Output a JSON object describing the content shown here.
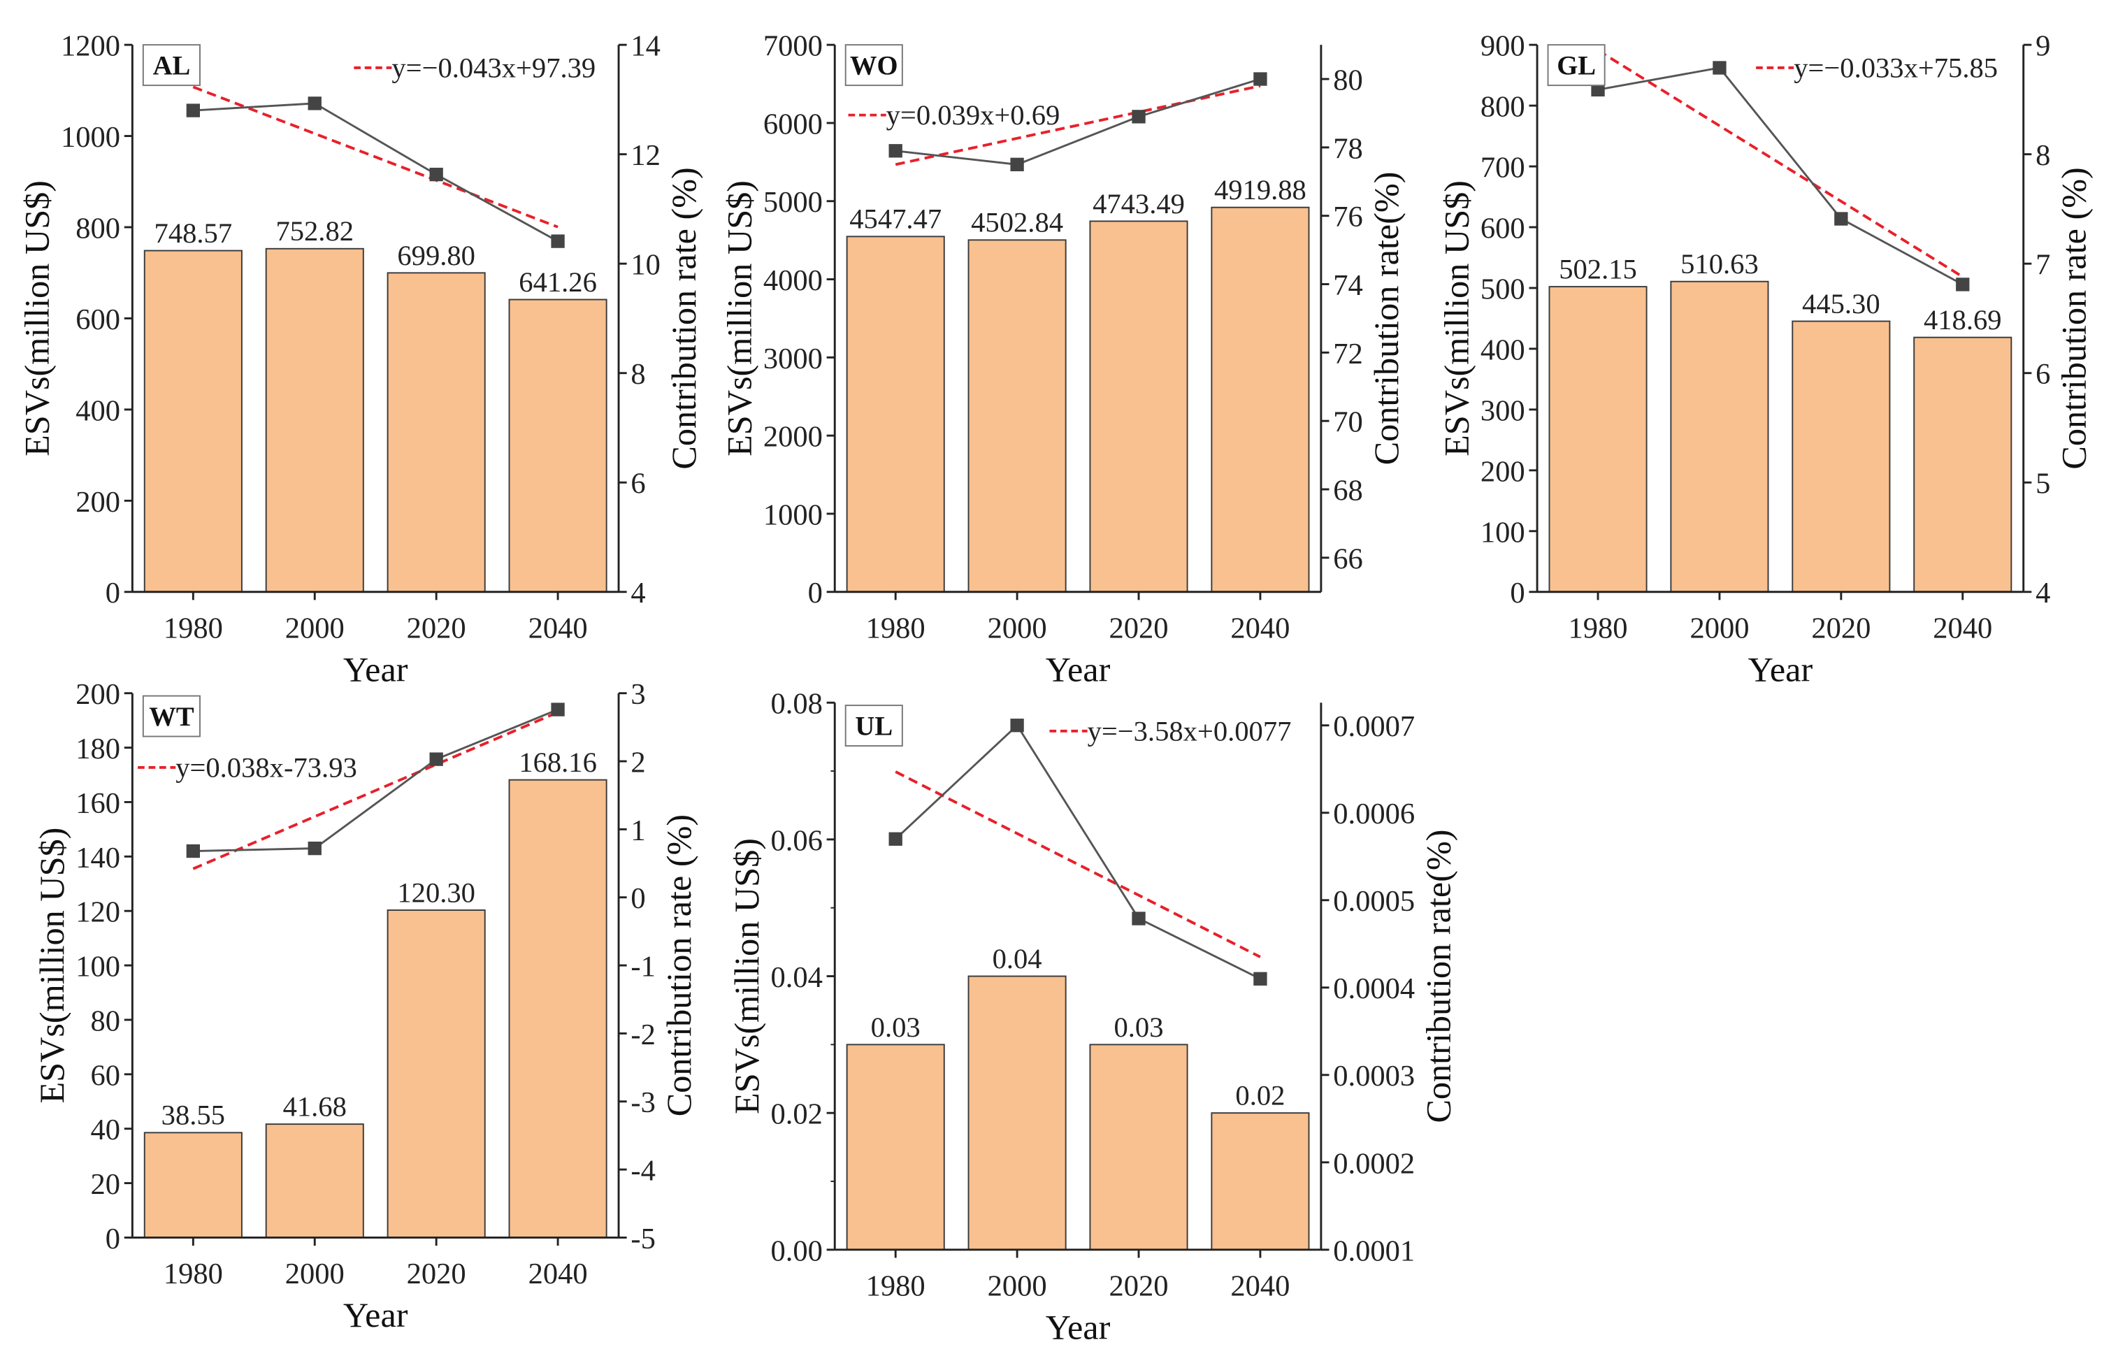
{
  "colors": {
    "bar_fill": "#F9C18F",
    "bar_stroke": "#3a3a3a",
    "line": "#555555",
    "marker": "#444444",
    "trend": "#E8202A",
    "axis": "#222222"
  },
  "chart_data": [
    {
      "type": "bar",
      "panel_label": "AL",
      "categories": [
        "1980",
        "2000",
        "2020",
        "2040"
      ],
      "values": [
        748.57,
        752.82,
        699.8,
        641.26
      ],
      "value_labels": [
        "748.57",
        "752.82",
        "699.80",
        "641.26"
      ],
      "ylabel": "ESVs(million US$)",
      "ylim": [
        0,
        1200
      ],
      "yticks": [
        "0",
        "200",
        "400",
        "600",
        "800",
        "1000",
        "1200"
      ],
      "y2label": "Contribution rate (%)",
      "y2lim": [
        4,
        14
      ],
      "y2ticks": [
        "4",
        "6",
        "8",
        "10",
        "12",
        "14"
      ],
      "xlabel": "Year",
      "line_series": {
        "name": "Contribution rate",
        "values": [
          12.8,
          12.93,
          11.63,
          10.41
        ]
      },
      "trend": {
        "label": "y=−0.043x+97.39",
        "start": 13.23,
        "end": 10.67
      }
    },
    {
      "type": "bar",
      "panel_label": "WO",
      "categories": [
        "1980",
        "2000",
        "2020",
        "2040"
      ],
      "values": [
        4547.47,
        4502.84,
        4743.49,
        4919.88
      ],
      "value_labels": [
        "4547.47",
        "4502.84",
        "4743.49",
        "4919.88"
      ],
      "ylabel": "ESVs(million US$)",
      "ylim": [
        0,
        7000
      ],
      "yticks": [
        "0",
        "1000",
        "2000",
        "3000",
        "4000",
        "5000",
        "6000",
        "7000"
      ],
      "y2label": "Contribution rate(%)",
      "y2lim": [
        65,
        81
      ],
      "y2ticks": [
        "66",
        "68",
        "70",
        "72",
        "74",
        "76",
        "78",
        "80"
      ],
      "xlabel": "Year",
      "line_series": {
        "name": "Contribution rate",
        "values": [
          77.9,
          77.5,
          78.9,
          80.0
        ]
      },
      "trend": {
        "label": "y=0.039x+0.69",
        "start": 77.5,
        "end": 79.8
      }
    },
    {
      "type": "bar",
      "panel_label": "GL",
      "categories": [
        "1980",
        "2000",
        "2020",
        "2040"
      ],
      "values": [
        502.15,
        510.63,
        445.3,
        418.69
      ],
      "value_labels": [
        "502.15",
        "510.63",
        "445.30",
        "418.69"
      ],
      "ylabel": "ESVs(million US$)",
      "ylim": [
        0,
        900
      ],
      "yticks": [
        "0",
        "100",
        "200",
        "300",
        "400",
        "500",
        "600",
        "700",
        "800",
        "900"
      ],
      "y2label": "Contribution rate (%)",
      "y2lim": [
        4,
        9
      ],
      "y2ticks": [
        "4",
        "5",
        "6",
        "7",
        "8",
        "9"
      ],
      "xlabel": "Year",
      "line_series": {
        "name": "Contribution rate",
        "values": [
          8.59,
          8.79,
          7.41,
          6.81
        ]
      },
      "trend": {
        "label": "y=−0.033x+75.85",
        "start": 8.95,
        "end": 6.88
      }
    },
    {
      "type": "bar",
      "panel_label": "WT",
      "categories": [
        "1980",
        "2000",
        "2020",
        "2040"
      ],
      "values": [
        38.55,
        41.68,
        120.3,
        168.16
      ],
      "value_labels": [
        "38.55",
        "41.68",
        "120.30",
        "168.16"
      ],
      "ylabel": "ESVs(million US$)",
      "ylim": [
        0,
        200
      ],
      "yticks": [
        "0",
        "20",
        "40",
        "60",
        "80",
        "100",
        "120",
        "140",
        "160",
        "180",
        "200"
      ],
      "y2label": "Contribution rate (%)",
      "y2lim": [
        -5,
        3
      ],
      "y2ticks": [
        "-5",
        "-4",
        "-3",
        "-2",
        "-1",
        "0",
        "1",
        "2",
        "3"
      ],
      "xlabel": "Year",
      "line_series": {
        "name": "Contribution rate",
        "values": [
          0.68,
          0.72,
          2.03,
          2.76
        ]
      },
      "trend": {
        "label": "y=0.038x-73.93",
        "start": 0.42,
        "end": 2.72
      }
    },
    {
      "type": "bar",
      "panel_label": "UL",
      "categories": [
        "1980",
        "2000",
        "2020",
        "2040"
      ],
      "values": [
        0.03,
        0.04,
        0.03,
        0.02
      ],
      "value_labels": [
        "0.03",
        "0.04",
        "0.03",
        "0.02"
      ],
      "ylabel": "ESVs(million US$)",
      "ylim": [
        0,
        0.08
      ],
      "yticks": [
        "0.00",
        "0.02",
        "0.04",
        "0.06",
        "0.08"
      ],
      "y2label": "Contribution rate(%)",
      "y2lim": [
        0.0001,
        0.000726
      ],
      "y2ticks": [
        "0.0001",
        "0.0002",
        "0.0003",
        "0.0004",
        "0.0005",
        "0.0006",
        "0.0007"
      ],
      "xlabel": "Year",
      "line_series": {
        "name": "Contribution rate",
        "values": [
          0.00057,
          0.0007,
          0.000479,
          0.00041
        ]
      },
      "trend": {
        "label": "y=−3.58x+0.0077",
        "start": 0.000647,
        "end": 0.000435
      }
    }
  ]
}
